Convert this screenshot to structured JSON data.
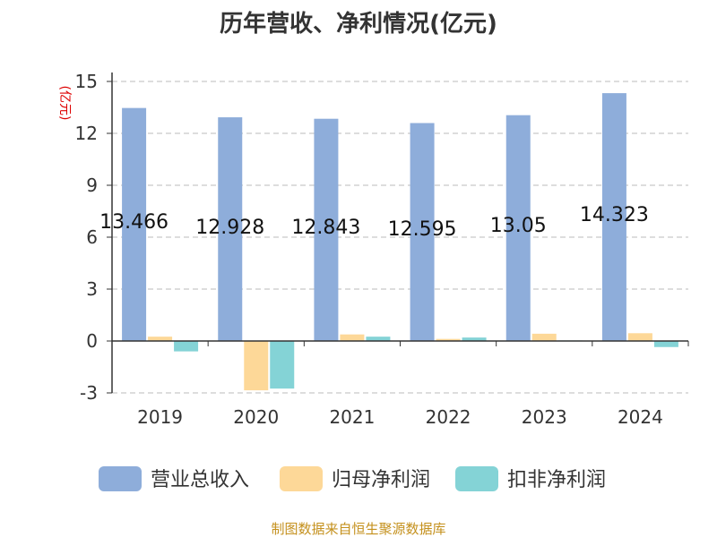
{
  "chart_data": {
    "type": "bar",
    "title": "历年营收、净利情况(亿元)",
    "ylabel": "(亿元)",
    "categories": [
      "2019",
      "2020",
      "2021",
      "2022",
      "2023",
      "2024"
    ],
    "ylim": [
      -3,
      15
    ],
    "yticks": [
      -3,
      0,
      3,
      6,
      9,
      12,
      15
    ],
    "grid": true,
    "legend_position": "bottom",
    "series": [
      {
        "name": "营业总收入",
        "color": "#8eadda",
        "values": [
          13.466,
          12.928,
          12.843,
          12.595,
          13.05,
          14.323
        ],
        "labels": [
          "13.466",
          "12.928",
          "12.843",
          "12.595",
          "13.05",
          "14.323"
        ]
      },
      {
        "name": "归母净利润",
        "color": "#fdd898",
        "values": [
          0.25,
          -2.85,
          0.38,
          0.12,
          0.42,
          0.45
        ]
      },
      {
        "name": "扣非净利润",
        "color": "#84d3d6",
        "values": [
          -0.6,
          -2.75,
          0.25,
          0.2,
          0.03,
          -0.35
        ]
      }
    ],
    "source": "制图数据来自恒生聚源数据库"
  }
}
